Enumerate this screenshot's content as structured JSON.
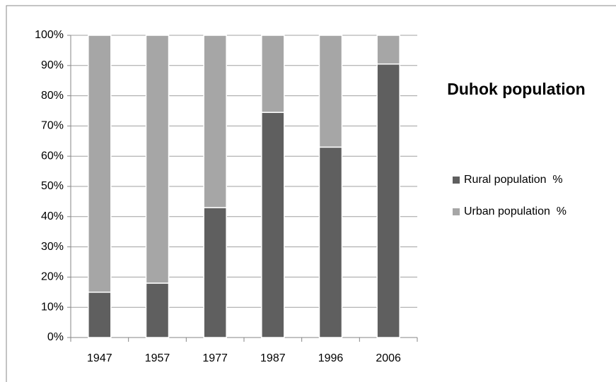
{
  "chart_data": {
    "type": "stacked_bar",
    "title": "Duhok population",
    "categories": [
      "1947",
      "1957",
      "1977",
      "1987",
      "1996",
      "2006"
    ],
    "series": [
      {
        "name": "Rural population  %",
        "color": "#5f5f5f",
        "values": [
          15,
          18,
          43,
          74.5,
          63,
          90.5
        ]
      },
      {
        "name": "Urban population  %",
        "color": "#a6a6a6",
        "values": [
          85,
          82,
          57,
          25.5,
          37,
          9.5
        ]
      }
    ],
    "ylim": [
      0,
      100
    ],
    "yticks": [
      {
        "value": 0,
        "label": "0%"
      },
      {
        "value": 10,
        "label": "10%"
      },
      {
        "value": 20,
        "label": "20%"
      },
      {
        "value": 30,
        "label": "30%"
      },
      {
        "value": 40,
        "label": "40%"
      },
      {
        "value": 50,
        "label": "50%"
      },
      {
        "value": 60,
        "label": "60%"
      },
      {
        "value": 70,
        "label": "70%"
      },
      {
        "value": 80,
        "label": "80%"
      },
      {
        "value": 90,
        "label": "90%"
      },
      {
        "value": 100,
        "label": "100%"
      }
    ],
    "grid": true,
    "legend": "right"
  }
}
